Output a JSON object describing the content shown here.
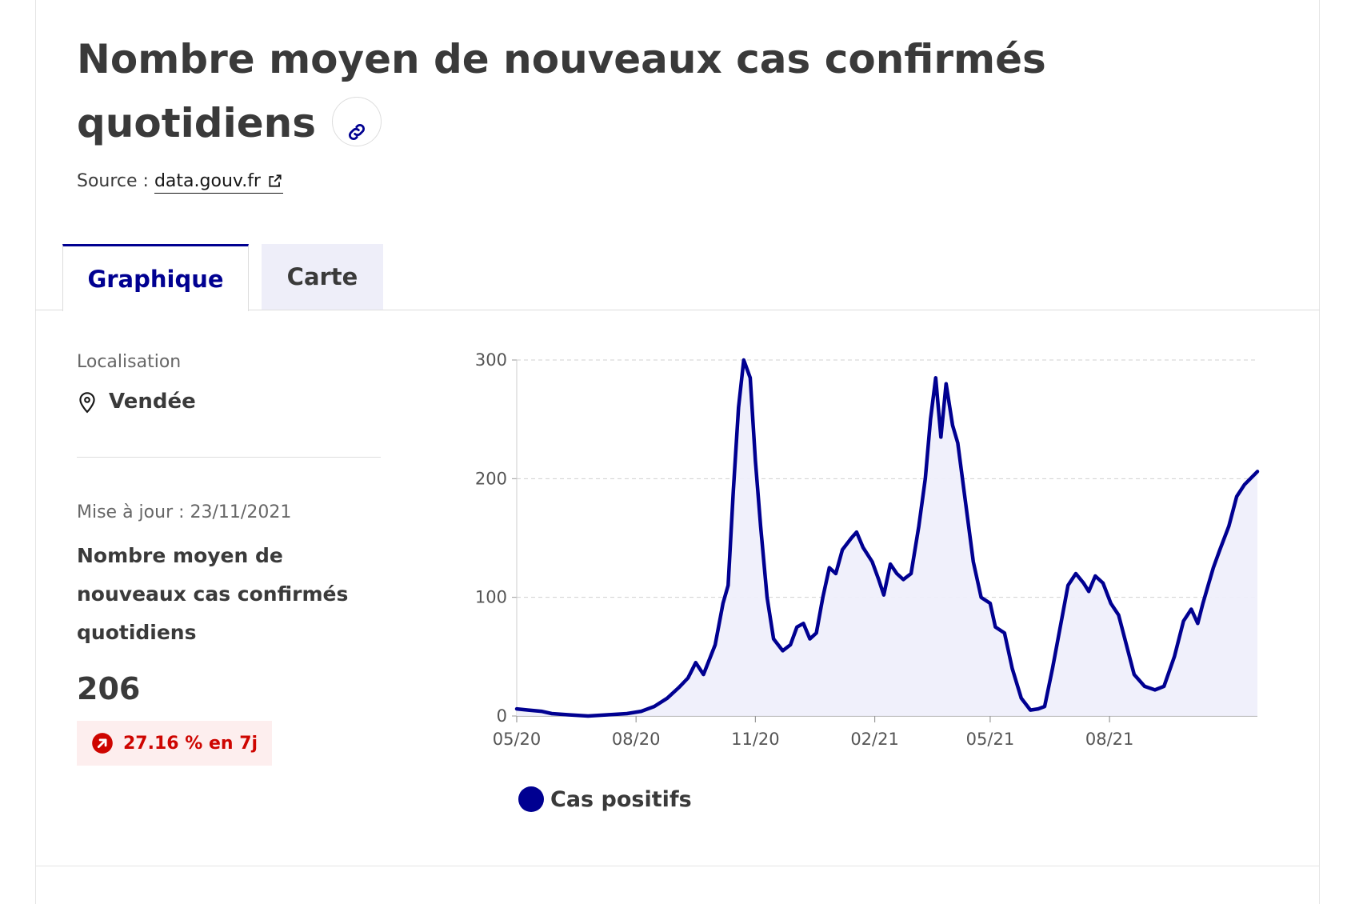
{
  "header": {
    "title": "Nombre moyen de nouveaux cas confirmés quotidiens",
    "source_prefix": "Source :",
    "source_link": "data.gouv.fr"
  },
  "tabs": [
    {
      "label": "Graphique",
      "active": true
    },
    {
      "label": "Carte",
      "active": false
    }
  ],
  "sidebar": {
    "location_label": "Localisation",
    "location_value": "Vendée",
    "update_text": "Mise à jour : 23/11/2021",
    "kpi_title": "Nombre moyen de nouveaux cas confirmés quotidiens",
    "kpi_value": "206",
    "trend_text": "27.16 % en 7j"
  },
  "colors": {
    "accent": "#000091",
    "area_fill": "#eeeefb",
    "trend_red": "#ce0500",
    "trend_bg": "#fdeeee"
  },
  "icons": [
    "link-icon",
    "external-link-icon",
    "map-pin-icon",
    "arrow-up-right-icon"
  ],
  "chart_data": {
    "type": "area",
    "title": "",
    "xlabel": "",
    "ylabel": "",
    "xlim": [
      "2020-05-01",
      "2021-11-23"
    ],
    "ylim": [
      0,
      300
    ],
    "yticks": [
      0,
      100,
      200,
      300
    ],
    "xticks": [
      {
        "date": "2020-05-01",
        "label": "05/20"
      },
      {
        "date": "2020-08-01",
        "label": "08/20"
      },
      {
        "date": "2020-11-01",
        "label": "11/20"
      },
      {
        "date": "2021-02-01",
        "label": "02/21"
      },
      {
        "date": "2021-05-01",
        "label": "05/21"
      },
      {
        "date": "2021-08-01",
        "label": "08/21"
      }
    ],
    "grid": "horizontal dashed",
    "legend_position": "bottom-left",
    "series": [
      {
        "name": "Cas positifs",
        "color": "#000091",
        "points": [
          [
            "2020-05-01",
            6
          ],
          [
            "2020-05-10",
            5
          ],
          [
            "2020-05-20",
            4
          ],
          [
            "2020-05-28",
            2
          ],
          [
            "2020-06-10",
            1
          ],
          [
            "2020-06-25",
            0
          ],
          [
            "2020-07-10",
            1
          ],
          [
            "2020-07-25",
            2
          ],
          [
            "2020-08-05",
            4
          ],
          [
            "2020-08-15",
            8
          ],
          [
            "2020-08-25",
            15
          ],
          [
            "2020-09-03",
            24
          ],
          [
            "2020-09-10",
            32
          ],
          [
            "2020-09-16",
            45
          ],
          [
            "2020-09-22",
            35
          ],
          [
            "2020-10-01",
            60
          ],
          [
            "2020-10-07",
            95
          ],
          [
            "2020-10-11",
            110
          ],
          [
            "2020-10-15",
            190
          ],
          [
            "2020-10-19",
            260
          ],
          [
            "2020-10-23",
            300
          ],
          [
            "2020-10-28",
            285
          ],
          [
            "2020-11-01",
            215
          ],
          [
            "2020-11-05",
            160
          ],
          [
            "2020-11-10",
            100
          ],
          [
            "2020-11-15",
            65
          ],
          [
            "2020-11-22",
            55
          ],
          [
            "2020-11-28",
            60
          ],
          [
            "2020-12-03",
            75
          ],
          [
            "2020-12-08",
            78
          ],
          [
            "2020-12-13",
            65
          ],
          [
            "2020-12-18",
            70
          ],
          [
            "2020-12-23",
            100
          ],
          [
            "2020-12-28",
            125
          ],
          [
            "2021-01-02",
            120
          ],
          [
            "2021-01-07",
            140
          ],
          [
            "2021-01-14",
            150
          ],
          [
            "2021-01-18",
            155
          ],
          [
            "2021-01-23",
            142
          ],
          [
            "2021-01-30",
            130
          ],
          [
            "2021-02-04",
            115
          ],
          [
            "2021-02-08",
            102
          ],
          [
            "2021-02-13",
            128
          ],
          [
            "2021-02-18",
            120
          ],
          [
            "2021-02-23",
            115
          ],
          [
            "2021-03-01",
            120
          ],
          [
            "2021-03-07",
            160
          ],
          [
            "2021-03-12",
            200
          ],
          [
            "2021-03-16",
            250
          ],
          [
            "2021-03-20",
            285
          ],
          [
            "2021-03-24",
            235
          ],
          [
            "2021-03-28",
            280
          ],
          [
            "2021-04-02",
            245
          ],
          [
            "2021-04-06",
            230
          ],
          [
            "2021-04-12",
            180
          ],
          [
            "2021-04-18",
            130
          ],
          [
            "2021-04-24",
            100
          ],
          [
            "2021-05-01",
            95
          ],
          [
            "2021-05-05",
            75
          ],
          [
            "2021-05-12",
            70
          ],
          [
            "2021-05-18",
            40
          ],
          [
            "2021-05-25",
            15
          ],
          [
            "2021-06-01",
            5
          ],
          [
            "2021-06-07",
            6
          ],
          [
            "2021-06-12",
            8
          ],
          [
            "2021-06-18",
            40
          ],
          [
            "2021-06-24",
            75
          ],
          [
            "2021-06-30",
            110
          ],
          [
            "2021-07-06",
            120
          ],
          [
            "2021-07-12",
            112
          ],
          [
            "2021-07-16",
            105
          ],
          [
            "2021-07-21",
            118
          ],
          [
            "2021-07-27",
            112
          ],
          [
            "2021-08-02",
            95
          ],
          [
            "2021-08-08",
            85
          ],
          [
            "2021-08-14",
            60
          ],
          [
            "2021-08-20",
            35
          ],
          [
            "2021-08-28",
            25
          ],
          [
            "2021-09-05",
            22
          ],
          [
            "2021-09-12",
            25
          ],
          [
            "2021-09-20",
            50
          ],
          [
            "2021-09-27",
            80
          ],
          [
            "2021-10-03",
            90
          ],
          [
            "2021-10-08",
            78
          ],
          [
            "2021-10-12",
            95
          ],
          [
            "2021-10-16",
            110
          ],
          [
            "2021-10-20",
            125
          ],
          [
            "2021-10-25",
            140
          ],
          [
            "2021-11-01",
            160
          ],
          [
            "2021-11-07",
            185
          ],
          [
            "2021-11-13",
            195
          ],
          [
            "2021-11-23",
            206
          ]
        ]
      }
    ]
  }
}
